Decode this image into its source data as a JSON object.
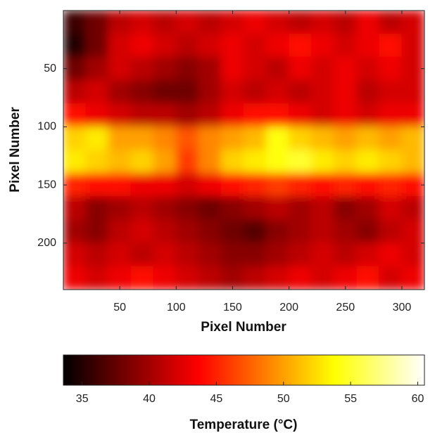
{
  "chart_data": {
    "type": "heatmap",
    "xlabel": "Pixel Number",
    "ylabel": "Pixel Number",
    "colorbar_label": "Temperature (°C)",
    "colormap": "hot",
    "x": [
      10,
      30,
      50,
      70,
      90,
      110,
      130,
      150,
      170,
      190,
      210,
      230,
      250,
      270,
      290,
      310
    ],
    "y": [
      10,
      30,
      50,
      70,
      90,
      110,
      130,
      150,
      170,
      190,
      210,
      230
    ],
    "z": [
      [
        36,
        38,
        41,
        42,
        41,
        42,
        41,
        42,
        43,
        42,
        41,
        42,
        41,
        43,
        41,
        42
      ],
      [
        35,
        38,
        42,
        43,
        42,
        41,
        42,
        43,
        42,
        43,
        44,
        43,
        42,
        43,
        44,
        42
      ],
      [
        38,
        40,
        42,
        41,
        40,
        39,
        40,
        43,
        42,
        41,
        43,
        42,
        43,
        42,
        43,
        42
      ],
      [
        41,
        42,
        40,
        39,
        38,
        38,
        40,
        42,
        41,
        42,
        41,
        42,
        43,
        41,
        42,
        42
      ],
      [
        44,
        43,
        42,
        41,
        41,
        40,
        41,
        43,
        44,
        44,
        43,
        42,
        43,
        42,
        43,
        43
      ],
      [
        52,
        53,
        50,
        50,
        49,
        47,
        49,
        50,
        51,
        54,
        52,
        51,
        50,
        51,
        50,
        51
      ],
      [
        53,
        52,
        51,
        52,
        50,
        46,
        49,
        52,
        53,
        54,
        55,
        53,
        52,
        53,
        52,
        51
      ],
      [
        45,
        44,
        44,
        43,
        43,
        42,
        43,
        44,
        45,
        46,
        45,
        44,
        45,
        44,
        45,
        44
      ],
      [
        41,
        39,
        40,
        41,
        40,
        39,
        38,
        39,
        40,
        41,
        40,
        41,
        39,
        40,
        42,
        41
      ],
      [
        40,
        39,
        41,
        42,
        41,
        40,
        39,
        38,
        37,
        39,
        40,
        41,
        40,
        39,
        41,
        42
      ],
      [
        42,
        41,
        42,
        41,
        42,
        41,
        40,
        39,
        39,
        40,
        41,
        42,
        41,
        42,
        43,
        42
      ],
      [
        43,
        42,
        43,
        44,
        43,
        42,
        41,
        40,
        41,
        42,
        43,
        42,
        43,
        44,
        42,
        43
      ]
    ],
    "xlim": [
      0,
      320
    ],
    "ylim": [
      240,
      0
    ],
    "xticks": [
      50,
      100,
      150,
      200,
      250,
      300
    ],
    "yticks": [
      50,
      100,
      150,
      200
    ],
    "clim": [
      33.6,
      60.5
    ],
    "cticks": [
      35,
      40,
      45,
      50,
      55,
      60
    ]
  }
}
